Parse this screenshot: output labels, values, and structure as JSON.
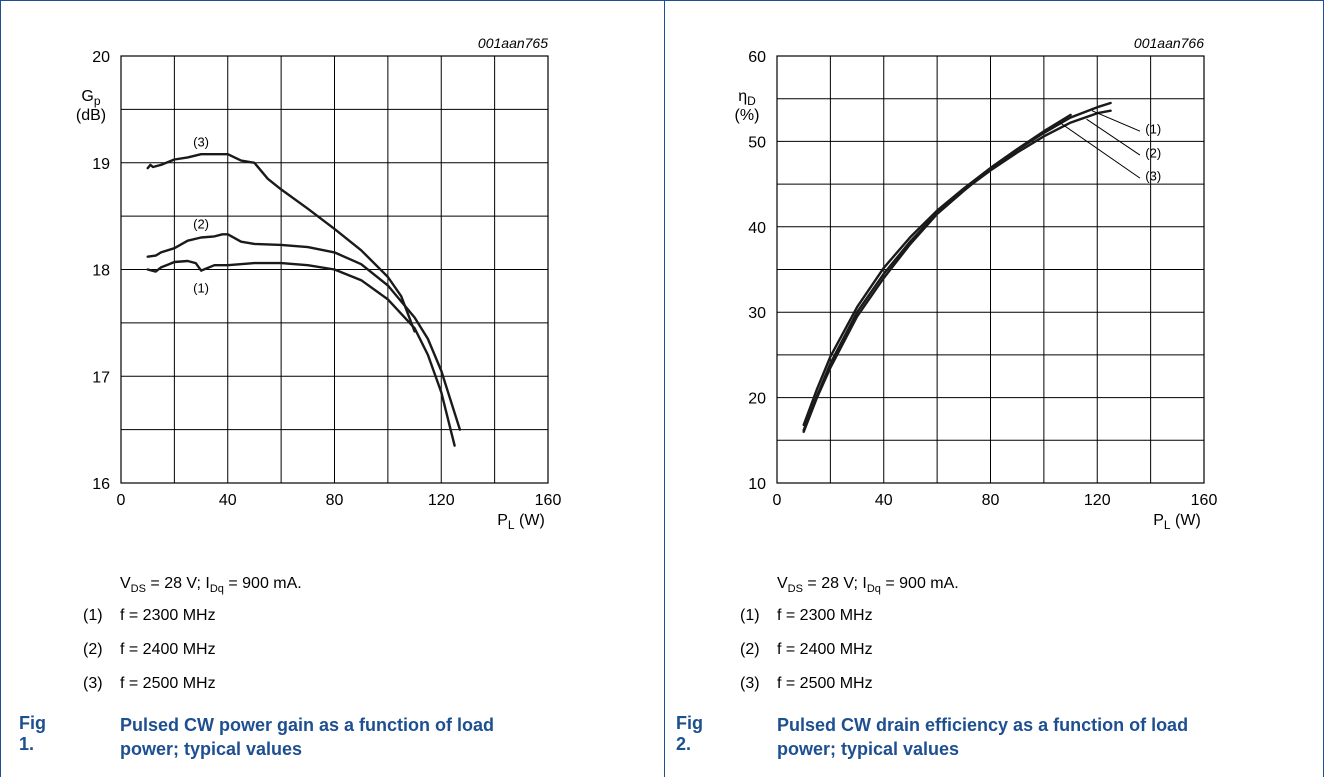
{
  "chart_data": [
    {
      "type": "line",
      "id_label": "001aan765",
      "ylabel_main": "G",
      "ylabel_sub": "p",
      "ylabel_unit": "(dB)",
      "xlabel_main": "P",
      "xlabel_sub": "L",
      "xlabel_unit": " (W)",
      "xlim": [
        0,
        160
      ],
      "ylim": [
        16,
        20
      ],
      "xticks": [
        "0",
        "40",
        "80",
        "120",
        "160"
      ],
      "yticks": [
        "16",
        "17",
        "18",
        "19",
        "20"
      ],
      "grid": true,
      "series": [
        {
          "name": "(1)",
          "x": [
            10,
            13,
            15,
            18,
            20,
            25,
            28,
            30,
            35,
            40,
            50,
            60,
            70,
            80,
            90,
            100,
            110,
            115,
            120,
            125
          ],
          "y": [
            18.0,
            17.98,
            18.02,
            18.05,
            18.07,
            18.08,
            18.06,
            17.99,
            18.04,
            18.04,
            18.06,
            18.06,
            18.04,
            18.0,
            17.9,
            17.72,
            17.45,
            17.2,
            16.85,
            16.35
          ]
        },
        {
          "name": "(2)",
          "x": [
            10,
            13,
            15,
            20,
            25,
            30,
            35,
            38,
            40,
            45,
            50,
            60,
            70,
            80,
            90,
            100,
            110,
            115,
            120,
            127
          ],
          "y": [
            18.12,
            18.13,
            18.16,
            18.2,
            18.27,
            18.3,
            18.31,
            18.33,
            18.33,
            18.26,
            18.24,
            18.23,
            18.21,
            18.16,
            18.05,
            17.85,
            17.55,
            17.35,
            17.05,
            16.5
          ]
        },
        {
          "name": "(3)",
          "x": [
            10,
            11,
            12,
            15,
            20,
            25,
            30,
            35,
            40,
            45,
            50,
            55,
            60,
            70,
            80,
            90,
            100,
            105,
            110
          ],
          "y": [
            18.95,
            18.98,
            18.96,
            18.98,
            19.03,
            19.05,
            19.08,
            19.08,
            19.08,
            19.02,
            19.0,
            18.85,
            18.75,
            18.57,
            18.38,
            18.18,
            17.93,
            17.75,
            17.42
          ]
        }
      ],
      "annotations": [
        {
          "text": "(3)",
          "x": 30,
          "y": 19.2
        },
        {
          "text": "(2)",
          "x": 30,
          "y": 18.43
        },
        {
          "text": "(1)",
          "x": 30,
          "y": 17.83
        }
      ]
    },
    {
      "type": "line",
      "id_label": "001aan766",
      "ylabel_main": "η",
      "ylabel_sub": "D",
      "ylabel_unit": "(%)",
      "xlabel_main": "P",
      "xlabel_sub": "L",
      "xlabel_unit": " (W)",
      "xlim": [
        0,
        160
      ],
      "ylim": [
        10,
        60
      ],
      "xticks": [
        "0",
        "40",
        "80",
        "120",
        "160"
      ],
      "yticks": [
        "10",
        "20",
        "30",
        "40",
        "50",
        "60"
      ],
      "grid": true,
      "series": [
        {
          "name": "(1)",
          "x": [
            10,
            15,
            20,
            30,
            40,
            50,
            60,
            70,
            80,
            90,
            100,
            110,
            120,
            125
          ],
          "y": [
            16,
            20,
            23.5,
            29.5,
            34,
            38,
            41.5,
            44.2,
            46.8,
            49,
            51,
            52.8,
            54,
            54.5
          ]
        },
        {
          "name": "(2)",
          "x": [
            10,
            15,
            20,
            30,
            40,
            50,
            60,
            70,
            80,
            90,
            100,
            110,
            120,
            125
          ],
          "y": [
            16.2,
            20.2,
            24,
            30,
            34.5,
            38.3,
            41.6,
            44.3,
            46.6,
            48.7,
            50.6,
            52.2,
            53.3,
            53.6
          ]
        },
        {
          "name": "(3)",
          "x": [
            10,
            15,
            20,
            30,
            40,
            50,
            60,
            70,
            80,
            90,
            100,
            110
          ],
          "y": [
            16.8,
            21,
            24.8,
            30.6,
            35.2,
            38.8,
            41.9,
            44.5,
            46.9,
            49.1,
            51.2,
            53.1
          ]
        }
      ],
      "annotations": [
        {
          "text": "(1)",
          "x": 138,
          "y": 51.5
        },
        {
          "text": "(2)",
          "x": 138,
          "y": 48.7
        },
        {
          "text": "(3)",
          "x": 138,
          "y": 46
        }
      ]
    }
  ],
  "panels": [
    {
      "note_a": "V",
      "note_a_sub": "DS",
      "note_b": " = 28 V; I",
      "note_b_sub": "Dq",
      "note_c": " = 900 mA.",
      "legend": [
        {
          "num": "(1)",
          "text": "f = 2300 MHz"
        },
        {
          "num": "(2)",
          "text": "f = 2400 MHz"
        },
        {
          "num": "(3)",
          "text": "f = 2500 MHz"
        }
      ],
      "fig_label": "Fig 1.",
      "fig_title": "Pulsed CW power gain as a function of load power; typical values"
    },
    {
      "note_a": "V",
      "note_a_sub": "DS",
      "note_b": " = 28 V; I",
      "note_b_sub": "Dq",
      "note_c": " = 900 mA.",
      "legend": [
        {
          "num": "(1)",
          "text": "f = 2300 MHz"
        },
        {
          "num": "(2)",
          "text": "f = 2400 MHz"
        },
        {
          "num": "(3)",
          "text": "f = 2500 MHz"
        }
      ],
      "fig_label": "Fig 2.",
      "fig_title": "Pulsed CW drain efficiency as a function of load power; typical values"
    }
  ]
}
